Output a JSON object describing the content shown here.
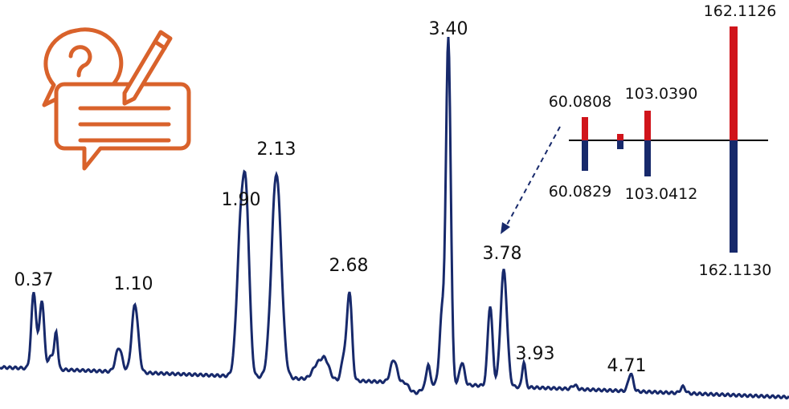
{
  "peaks": [
    {
      "label": "0.37"
    },
    {
      "label": "1.10"
    },
    {
      "label": "1.90"
    },
    {
      "label": "2.13"
    },
    {
      "label": "2.68"
    },
    {
      "label": "3.40"
    },
    {
      "label": "3.78"
    },
    {
      "label": "3.93"
    },
    {
      "label": "4.71"
    }
  ],
  "spectrum": {
    "top_labels": [
      "60.0808",
      "103.0390",
      "162.1126"
    ],
    "bottom_labels": [
      "60.0829",
      "103.0412",
      "162.1130"
    ]
  }
}
